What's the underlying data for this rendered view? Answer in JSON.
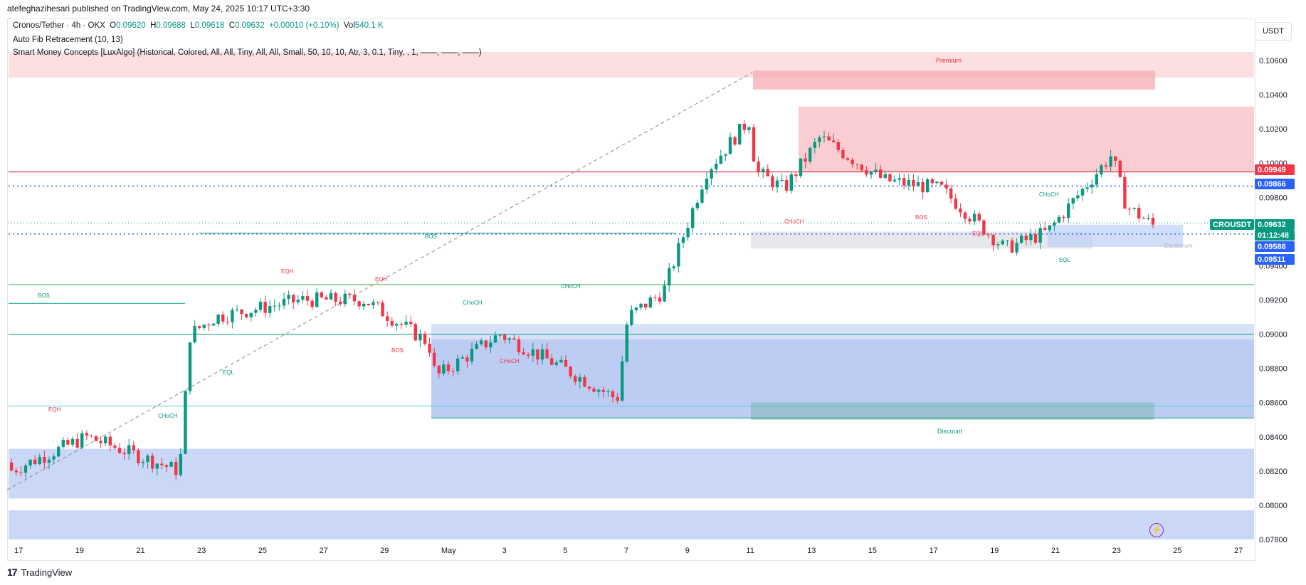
{
  "header": {
    "text": "atefeghazihesari published on TradingView.com, May 24, 2025 10:17 UTC+3:30"
  },
  "legend": {
    "symbol": "Cronos/Tether · 4h · OKX",
    "o_label": "O",
    "o_value": "0.09620",
    "h_label": "H",
    "h_value": "0.09688",
    "l_label": "L",
    "l_value": "0.09618",
    "c_label": "C",
    "c_value": "0.09632",
    "change": "+0.00010 (+0.10%)",
    "vol_label": "Vol",
    "vol_value": "540.1 K",
    "indicator1": "Auto Fib Retracement (10, 13)",
    "indicator2": "Smart Money Concepts [LuxAlgo] (Historical, Colored, All, All, Tiny, All, All, Small, 50, 10, 10, Atr, 3, 0.1, Tiny, , 1, ——, ——, ——)"
  },
  "currency": "USDT",
  "footer": {
    "brand": "TradingView"
  },
  "colors": {
    "up": "#089981",
    "down": "#f23645",
    "premium": "#f7c5c9",
    "discount": "#a7bdf1",
    "blueLine": "#2962ff",
    "redLine": "#f23645",
    "greenLine": "#089981"
  },
  "chart_data": {
    "type": "candlestick",
    "price_axis": [
      "0.10600",
      "0.10400",
      "0.10200",
      "0.10000",
      "0.09800",
      "0.09600",
      "0.09400",
      "0.09200",
      "0.09000",
      "0.08800",
      "0.08600",
      "0.08400",
      "0.08200",
      "0.08000",
      "0.07800"
    ],
    "time_axis": [
      "17",
      "19",
      "21",
      "23",
      "25",
      "27",
      "29",
      "May",
      "3",
      "5",
      "7",
      "9",
      "11",
      "13",
      "15",
      "17",
      "19",
      "21",
      "23",
      "25",
      "27"
    ],
    "price_labels": [
      {
        "value": "0.09949",
        "kind": "red"
      },
      {
        "value": "0.09866",
        "kind": "blue"
      },
      {
        "value": "CROUSDT",
        "kind": "green"
      },
      {
        "value": "0.09632",
        "kind": "green"
      },
      {
        "value": "01:12:48",
        "kind": "green"
      },
      {
        "value": "0.09586",
        "kind": "blue"
      },
      {
        "value": "0.09511",
        "kind": "blue"
      }
    ],
    "zone_labels": {
      "premium": "Premium",
      "discount": "Discount",
      "equilibrium": "Equilibrium"
    },
    "structure_labels": [
      "BOS",
      "BOS",
      "BOS",
      "BOS",
      "CHoCH",
      "CHoCH",
      "CHoCH",
      "CHoCH",
      "CHoCH",
      "CHoCH",
      "EQH",
      "EQH",
      "EQH",
      "EQL",
      "EQL",
      "EQL"
    ]
  }
}
